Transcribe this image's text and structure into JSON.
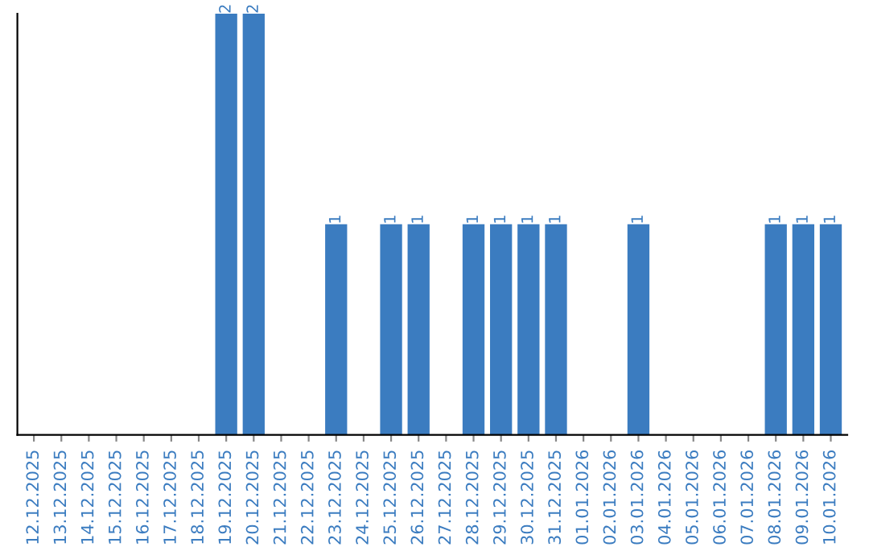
{
  "chart_data": {
    "type": "bar",
    "color": "#3b7cc0",
    "categories": [
      "12.12.2025",
      "13.12.2025",
      "14.12.2025",
      "15.12.2025",
      "16.12.2025",
      "17.12.2025",
      "18.12.2025",
      "19.12.2025",
      "20.12.2025",
      "21.12.2025",
      "22.12.2025",
      "23.12.2025",
      "24.12.2025",
      "25.12.2025",
      "26.12.2025",
      "27.12.2025",
      "28.12.2025",
      "29.12.2025",
      "30.12.2025",
      "31.12.2025",
      "01.01.2026",
      "02.01.2026",
      "03.01.2026",
      "04.01.2026",
      "05.01.2026",
      "06.01.2026",
      "07.01.2026",
      "08.01.2026",
      "09.01.2026",
      "10.01.2026"
    ],
    "values": [
      0,
      0,
      0,
      0,
      0,
      0,
      0,
      2,
      2,
      0,
      0,
      1,
      0,
      1,
      1,
      0,
      1,
      1,
      1,
      1,
      0,
      0,
      1,
      0,
      0,
      0,
      0,
      1,
      1,
      1
    ],
    "value_labels": [
      null,
      null,
      null,
      null,
      null,
      null,
      null,
      "2",
      "2",
      null,
      null,
      "1",
      null,
      "1",
      "1",
      null,
      "1",
      "1",
      "1",
      "1",
      null,
      null,
      "1",
      null,
      null,
      null,
      null,
      "1",
      "1",
      "1"
    ],
    "tick_labels": "x",
    "grid": false,
    "legend": false
  }
}
